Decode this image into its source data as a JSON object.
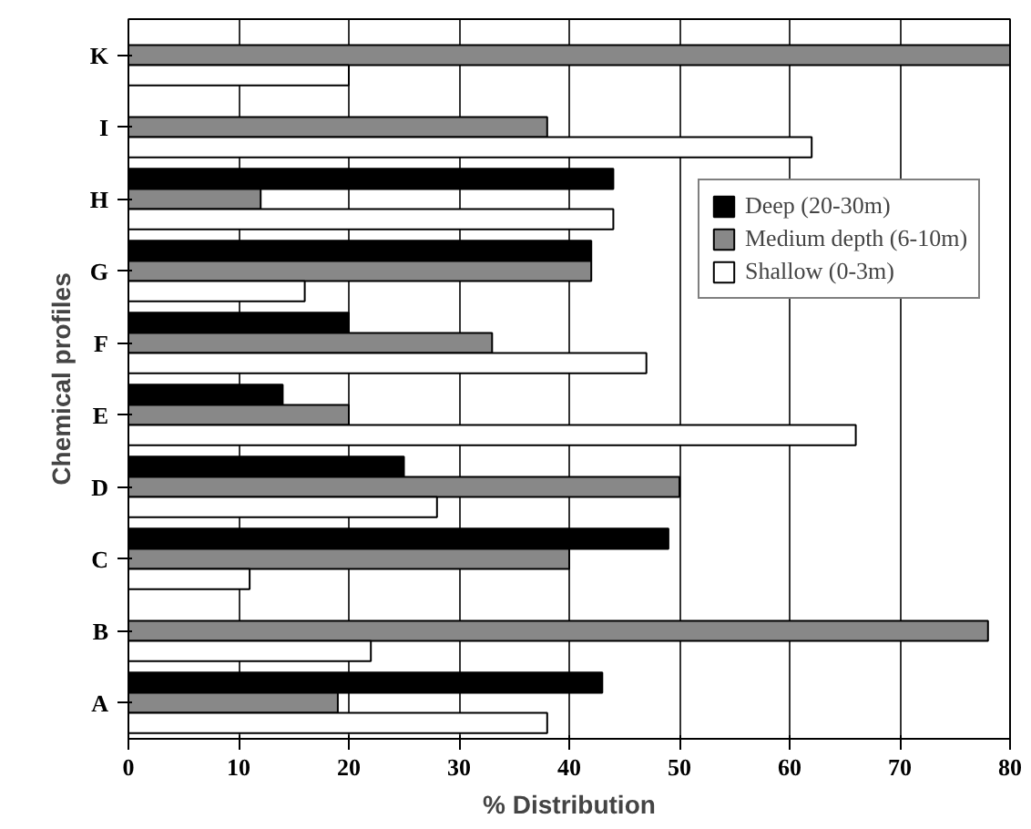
{
  "chart_data": {
    "type": "bar",
    "orientation": "horizontal",
    "xlabel": "% Distribution",
    "ylabel": "Chemical profiles",
    "categories": [
      "K",
      "I",
      "H",
      "G",
      "F",
      "E",
      "D",
      "C",
      "B",
      "A"
    ],
    "series": [
      {
        "name": "Deep (20-30m)",
        "color": "#000000",
        "values": [
          0,
          0,
          44,
          42,
          20,
          14,
          25,
          49,
          0,
          43
        ]
      },
      {
        "name": "Medium depth (6-10m)",
        "color": "#888888",
        "values": [
          80,
          38,
          12,
          42,
          33,
          20,
          50,
          40,
          78,
          19
        ]
      },
      {
        "name": "Shallow (0-3m)",
        "color": "#ffffff",
        "values": [
          20,
          62,
          44,
          16,
          47,
          66,
          28,
          11,
          22,
          38
        ]
      }
    ],
    "xlim": [
      0,
      80
    ],
    "xticks": [
      0,
      10,
      20,
      30,
      40,
      50,
      60,
      70,
      80
    ],
    "grid": "x",
    "legend": "top right"
  }
}
